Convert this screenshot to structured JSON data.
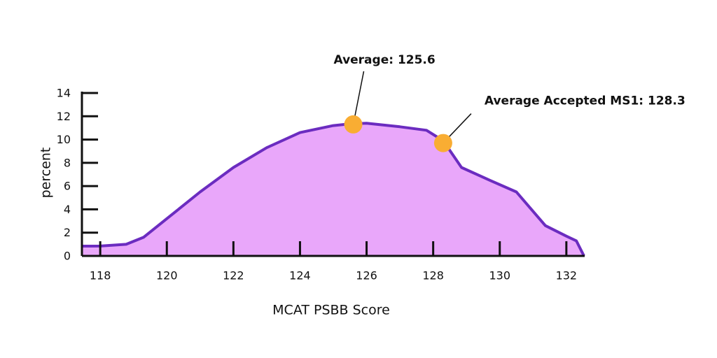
{
  "chart_data": {
    "type": "area",
    "x_label": "MCAT PSBB Score",
    "y_label": "percent",
    "x": [
      117.45,
      118,
      118.78,
      119.3,
      120,
      121,
      122,
      123,
      124,
      125,
      125.5,
      126,
      127,
      127.8,
      128.3,
      128.85,
      129.7,
      130.5,
      130.95,
      131.37,
      132,
      132.3,
      132.53
    ],
    "values": [
      0.84,
      0.85,
      1.0,
      1.6,
      3.2,
      5.5,
      7.6,
      9.3,
      10.6,
      11.2,
      11.35,
      11.4,
      11.1,
      10.8,
      9.9,
      7.6,
      6.5,
      5.5,
      4.0,
      2.6,
      1.7,
      1.3,
      0
    ],
    "color": "#6b2cc0",
    "fill": "#e9a7fa",
    "xlim": [
      117.45,
      132.55
    ],
    "ylim": [
      0,
      14
    ],
    "xticks": [
      118,
      120,
      122,
      124,
      126,
      128,
      130,
      132
    ],
    "yticks": [
      0,
      2,
      4,
      6,
      8,
      10,
      12,
      14
    ],
    "annotations": [
      {
        "text": "Average: 125.6",
        "x": 125.6,
        "y": 11.3
      },
      {
        "text": "Average Accepted MS1: 128.3",
        "x": 128.3,
        "y": 9.7
      }
    ],
    "marker_color": "#f9ad33"
  }
}
